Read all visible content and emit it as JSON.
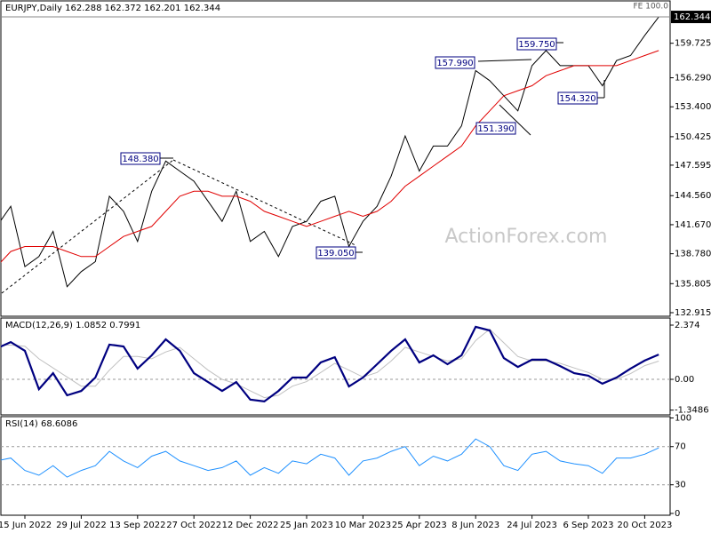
{
  "chart_data": [
    {
      "type": "line",
      "title": "EURJPY,Daily  162.288 162.372 162.201 162.344",
      "categories": [
        null,
        null,
        "15 Jun 2022",
        null,
        null,
        null,
        "29 Jul 2022",
        null,
        null,
        null,
        "13 Sep 2022",
        null,
        null,
        null,
        "27 Oct 2022",
        null,
        null,
        null,
        "12 Dec 2022",
        null,
        null,
        null,
        "25 Jan 2023",
        null,
        null,
        null,
        "10 Mar 2023",
        null,
        null,
        null,
        "25 Apr 2023",
        null,
        null,
        null,
        "8 Jun 2023",
        null,
        null,
        null,
        "24 Jul 2023",
        null,
        null,
        null,
        "6 Sep 2023",
        null,
        null,
        null,
        "20 Oct 2023",
        null
      ],
      "series": [
        {
          "color": "#000000",
          "values": [
            141.5,
            143.5,
            137.5,
            138.5,
            141,
            135.5,
            137,
            138,
            144.5,
            143,
            140,
            145,
            148,
            147,
            146,
            144,
            142,
            145,
            140,
            141,
            138.5,
            141.5,
            142,
            144,
            144.5,
            139.5,
            142,
            143.5,
            146.5,
            150.5,
            147,
            149.5,
            149.5,
            151.5,
            157,
            156,
            154.5,
            153,
            157.5,
            159,
            157.5,
            157.5,
            157.5,
            155.5,
            158,
            158.5,
            160.5,
            162.344
          ]
        },
        {
          "color": "#e00000",
          "values": [
            137.5,
            139,
            139.5,
            139.5,
            139.5,
            139,
            138.5,
            138.5,
            139.5,
            140.5,
            141,
            141.5,
            143,
            144.5,
            145,
            145,
            144.5,
            144.5,
            144,
            143,
            142.5,
            142,
            141.5,
            142,
            142.5,
            143,
            142.5,
            143,
            144,
            145.5,
            146.5,
            147.5,
            148.5,
            149.5,
            151.5,
            153,
            154.5,
            155,
            155.5,
            156.5,
            157,
            157.5,
            157.5,
            157.5,
            157.5,
            158,
            158.5,
            159
          ]
        }
      ],
      "ylim": [
        132.56,
        163.94
      ],
      "yticks": [
        {
          "value": 159.725,
          "label": "159.725"
        },
        {
          "value": 156.29,
          "label": "156.290"
        },
        {
          "value": 153.4,
          "label": "153.400"
        },
        150.425,
        147.595,
        {
          "value": 144.56,
          "label": "144.560"
        },
        {
          "value": 141.67,
          "label": "141.670"
        },
        {
          "value": 138.78,
          "label": "138.780"
        },
        135.805,
        132.915
      ],
      "annotations": [
        "148.380",
        "139.050",
        "157.990",
        "159.750",
        "151.390",
        "154.320",
        "FE 100.0"
      ],
      "watermark": "ActionForex.com"
    },
    {
      "type": "line",
      "title": "MACD(12,26,9) 1.0852 0.7991",
      "series": [
        {
          "color": "#c0c0c0",
          "values": [
            1.5,
            1.5,
            1.45,
            0.9,
            0.5,
            0.1,
            -0.3,
            -0.3,
            0.4,
            1.0,
            1.0,
            0.9,
            1.2,
            1.4,
            0.9,
            0.4,
            0,
            -0.2,
            -0.5,
            -0.8,
            -0.7,
            -0.3,
            -0.1,
            0.3,
            0.7,
            0.4,
            0.1,
            0.3,
            0.8,
            1.4,
            1.2,
            1.0,
            0.8,
            0.9,
            1.7,
            2.2,
            1.6,
            1.0,
            0.8,
            0.8,
            0.7,
            0.5,
            0.3,
            0.0,
            0.0,
            0.25,
            0.6,
            0.7991
          ]
        },
        {
          "color": "#000080",
          "values": [
            1.36,
            1.63,
            1.25,
            -0.43,
            0.27,
            -0.7,
            -0.51,
            0.08,
            1.52,
            1.44,
            0.47,
            1.05,
            1.75,
            1.25,
            0.27,
            -0.12,
            -0.51,
            -0.12,
            -0.89,
            -0.97,
            -0.51,
            0.08,
            0.08,
            0.74,
            0.97,
            -0.31,
            0.08,
            0.66,
            1.25,
            1.75,
            0.74,
            1.05,
            0.66,
            1.05,
            2.3,
            2.14,
            0.93,
            0.54,
            0.86,
            0.86,
            0.58,
            0.27,
            0.16,
            -0.19,
            0.08,
            0.47,
            0.82,
            1.0852
          ]
        }
      ],
      "ylim": [
        -1.556,
        2.685
      ],
      "yticks": [
        2.374,
        {
          "value": 0,
          "label": "0.00"
        },
        -1.3486
      ]
    },
    {
      "type": "line",
      "title": "RSI(14) 68.6086",
      "series": [
        {
          "color": "#1e90ff",
          "values": [
            55,
            58,
            45,
            40,
            50,
            38,
            45,
            50,
            65,
            55,
            48,
            60,
            65,
            55,
            50,
            45,
            48,
            55,
            40,
            48,
            42,
            55,
            52,
            62,
            58,
            40,
            55,
            58,
            65,
            70,
            50,
            60,
            55,
            62,
            78,
            70,
            50,
            45,
            62,
            65,
            55,
            52,
            50,
            42,
            58,
            58,
            62,
            68.6086
          ]
        }
      ],
      "ylim": [
        -1.9,
        101.4
      ],
      "yticks": [
        100,
        70,
        30,
        0
      ]
    }
  ]
}
